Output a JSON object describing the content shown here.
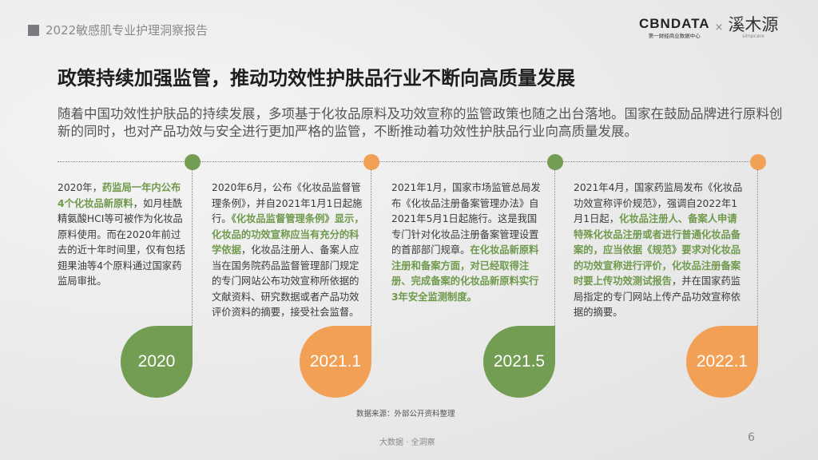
{
  "header": {
    "report_title": "2022敏感肌专业护理洞察报告",
    "logo": {
      "cbn": "CBNDATA",
      "cbn_sub": "第一财经商业数据中心",
      "separator": "×",
      "partner": "溪木源",
      "partner_sub": "simpcare"
    }
  },
  "title": "政策持续加强监管，推动功效性护肤品行业不断向高质量发展",
  "intro": "随着中国功效性护肤品的持续发展，多项基于化妆品原料及功效宣称的监管政策也随之出台落地。国家在鼓励品牌进行原料创新的同时，也对产品功效与安全进行更加严格的监管，不断推动着功效性护肤品行业向高质量发展。",
  "colors": {
    "green": "#739d52",
    "orange": "#f3a057",
    "highlight": "#6f9a4c"
  },
  "timeline": [
    {
      "year": "2020",
      "color": "green",
      "segments": [
        {
          "text": "2020年，",
          "hl": false
        },
        {
          "text": "药监局一年内公布4个化妆品新原料",
          "hl": true
        },
        {
          "text": "，如月桂酰精氨酸HCI等可被作为化妆品原料使用。而在2020年前过去的近十年时间里，仅有包括翅果油等4个原料通过国家药监局审批。",
          "hl": false
        }
      ]
    },
    {
      "year": "2021.1",
      "color": "orange",
      "segments": [
        {
          "text": "2020年6月，公布《化妆品监督管理条例》，并自2021年1月1日起施行。",
          "hl": false
        },
        {
          "text": "《化妆品监督管理条例》显示，化妆品的功效宣称应当有充分的科学依据",
          "hl": true
        },
        {
          "text": "，化妆品注册人、备案人应当在国务院药品监督管理部门规定的专门网站公布功效宣称所依据的文献资料、研究数据或者产品功效评价资料的摘要，接受社会监督。",
          "hl": false
        }
      ]
    },
    {
      "year": "2021.5",
      "color": "green",
      "segments": [
        {
          "text": "2021年1月，国家市场监管总局发布《化妆品注册备案管理办法》自2021年5月1日起施行。这是我国专门针对化妆品注册备案管理设置的首部部门规章。",
          "hl": false
        },
        {
          "text": "在化妆品新原料注册和备案方面，对已经取得注册、完成备案的化妆品新原料实行3年安全监测制度。",
          "hl": true
        }
      ]
    },
    {
      "year": "2022.1",
      "color": "orange",
      "segments": [
        {
          "text": "2021年4月，国家药监局发布《化妆品功效宣称评价规范》，强调自2022年1月1日起，",
          "hl": false
        },
        {
          "text": "化妆品注册人、备案人申请特殊化妆品注册或者进行普通化妆品备案的，应当依据《规范》要求对化妆品的功效宣称进行评价，化妆品注册备案时要上传功效测试报告",
          "hl": true
        },
        {
          "text": "，并在国家药监局指定的专门网站上传产品功效宣称依据的摘要。",
          "hl": false
        }
      ]
    }
  ],
  "source": "数据来源：外部公开资料整理",
  "footer": "大数据 · 全洞察",
  "page_number": "6"
}
